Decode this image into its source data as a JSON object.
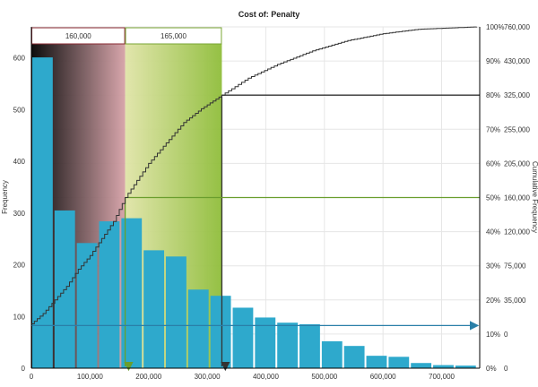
{
  "chart_data": {
    "type": "bar",
    "title": "Cost of: Penalty",
    "ylabel": "Frequency",
    "y2label": "Cumulative Frequency",
    "xlim": [
      0,
      765000
    ],
    "ylim": [
      0,
      660
    ],
    "x_ticks": [
      0,
      100000,
      200000,
      300000,
      400000,
      500000,
      600000,
      700000
    ],
    "x_tick_labels": [
      "0",
      "100,000",
      "200,000",
      "300,000",
      "400,000",
      "500,000",
      "600,000",
      "700,000"
    ],
    "y_ticks": [
      0,
      100,
      200,
      300,
      400,
      500,
      600
    ],
    "cum_ticks": [
      {
        "label": "0%",
        "value": "0"
      },
      {
        "label": "10%",
        "value": "0"
      },
      {
        "label": "20%",
        "value": "35,000"
      },
      {
        "label": "30%",
        "value": "75,000"
      },
      {
        "label": "40%",
        "value": "120,000"
      },
      {
        "label": "50%",
        "value": "160,000"
      },
      {
        "label": "60%",
        "value": "205,000"
      },
      {
        "label": "70%",
        "value": "255,000"
      },
      {
        "label": "80%",
        "value": "325,000"
      },
      {
        "label": "90%",
        "value": "430,000"
      },
      {
        "label": "100%",
        "value": "760,000"
      }
    ],
    "bin_width": 38000,
    "bars": [
      {
        "x0": 0,
        "value": 601
      },
      {
        "x0": 38000,
        "value": 305
      },
      {
        "x0": 76000,
        "value": 242
      },
      {
        "x0": 114000,
        "value": 284
      },
      {
        "x0": 152000,
        "value": 290
      },
      {
        "x0": 190000,
        "value": 228
      },
      {
        "x0": 228000,
        "value": 216
      },
      {
        "x0": 266000,
        "value": 152
      },
      {
        "x0": 304000,
        "value": 140
      },
      {
        "x0": 342000,
        "value": 117
      },
      {
        "x0": 380000,
        "value": 98
      },
      {
        "x0": 418000,
        "value": 88
      },
      {
        "x0": 456000,
        "value": 85
      },
      {
        "x0": 494000,
        "value": 52
      },
      {
        "x0": 532000,
        "value": 43
      },
      {
        "x0": 570000,
        "value": 24
      },
      {
        "x0": 608000,
        "value": 22
      },
      {
        "x0": 646000,
        "value": 10
      },
      {
        "x0": 684000,
        "value": 6
      },
      {
        "x0": 722000,
        "value": 5
      }
    ],
    "cumulative_curve": [
      {
        "x": 0,
        "pct": 13
      },
      {
        "x": 20000,
        "pct": 16
      },
      {
        "x": 40000,
        "pct": 20
      },
      {
        "x": 60000,
        "pct": 24
      },
      {
        "x": 80000,
        "pct": 29
      },
      {
        "x": 100000,
        "pct": 33
      },
      {
        "x": 120000,
        "pct": 38
      },
      {
        "x": 140000,
        "pct": 43
      },
      {
        "x": 160000,
        "pct": 50
      },
      {
        "x": 180000,
        "pct": 55
      },
      {
        "x": 200000,
        "pct": 60
      },
      {
        "x": 230000,
        "pct": 66
      },
      {
        "x": 260000,
        "pct": 72
      },
      {
        "x": 290000,
        "pct": 76
      },
      {
        "x": 325000,
        "pct": 80
      },
      {
        "x": 370000,
        "pct": 85
      },
      {
        "x": 420000,
        "pct": 89
      },
      {
        "x": 480000,
        "pct": 93
      },
      {
        "x": 540000,
        "pct": 96
      },
      {
        "x": 600000,
        "pct": 98
      },
      {
        "x": 660000,
        "pct": 99.3
      },
      {
        "x": 760000,
        "pct": 100
      }
    ],
    "bands": [
      {
        "label": "160,000",
        "from": 0,
        "to": 160000,
        "gradient": [
          "#000000",
          "#d6a1a7"
        ],
        "border": "#8a2a32"
      },
      {
        "label": "165,000",
        "from": 160000,
        "to": 325000,
        "gradient": [
          "#e0e4a8",
          "#8fbd3a"
        ],
        "border": "#7aa634"
      }
    ],
    "reference_lines": [
      {
        "pct": 80,
        "x": 325000,
        "color": "#333333"
      },
      {
        "pct": 50,
        "x": 160000,
        "color": "#6a9e2d"
      },
      {
        "pct": 12.5,
        "x": 0,
        "color": "#2a7fa8",
        "arrow": "right"
      }
    ],
    "colors": {
      "bar": "#2ea9cc",
      "bar_border": "#ffffff",
      "grid": "#e6e6e6",
      "curve": "#333333"
    }
  }
}
